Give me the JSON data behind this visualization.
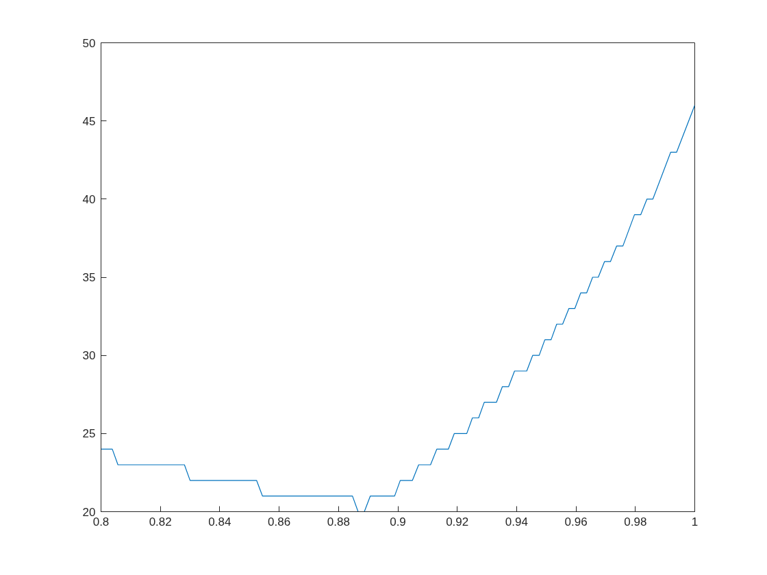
{
  "chart_data": {
    "type": "line",
    "x": [
      0.8,
      0.8038,
      0.8057,
      0.8281,
      0.83,
      0.8524,
      0.8544,
      0.8847,
      0.8866,
      0.8887,
      0.8907,
      0.8989,
      0.9008,
      0.9049,
      0.907,
      0.911,
      0.9131,
      0.917,
      0.919,
      0.9232,
      0.9251,
      0.9272,
      0.9291,
      0.9332,
      0.9352,
      0.9373,
      0.9393,
      0.9434,
      0.9454,
      0.9476,
      0.9495,
      0.9516,
      0.9535,
      0.9555,
      0.9576,
      0.9596,
      0.9616,
      0.9636,
      0.9656,
      0.9675,
      0.9696,
      0.9716,
      0.9737,
      0.9758,
      0.9797,
      0.9818,
      0.9839,
      0.9859,
      0.9919,
      0.9939,
      1.0
    ],
    "series": [
      {
        "color": "#0072bd",
        "values": [
          24,
          24,
          23,
          23,
          22,
          22,
          21,
          21,
          20,
          20,
          21,
          21,
          22,
          22,
          23,
          23,
          24,
          24,
          25,
          25,
          26,
          26,
          27,
          27,
          28,
          28,
          29,
          29,
          30,
          30,
          31,
          31,
          32,
          32,
          33,
          33,
          34,
          34,
          35,
          35,
          36,
          36,
          37,
          37,
          39,
          39,
          40,
          40,
          43,
          43,
          46
        ]
      }
    ],
    "xlim": [
      0.8,
      1
    ],
    "xticks": [
      0.8,
      0.82,
      0.84,
      0.86,
      0.88,
      0.9,
      0.92,
      0.94,
      0.96,
      0.98,
      1
    ],
    "ylim": [
      20,
      50
    ],
    "yticks": [
      20,
      25,
      30,
      35,
      40,
      45,
      50
    ],
    "grid": false
  }
}
